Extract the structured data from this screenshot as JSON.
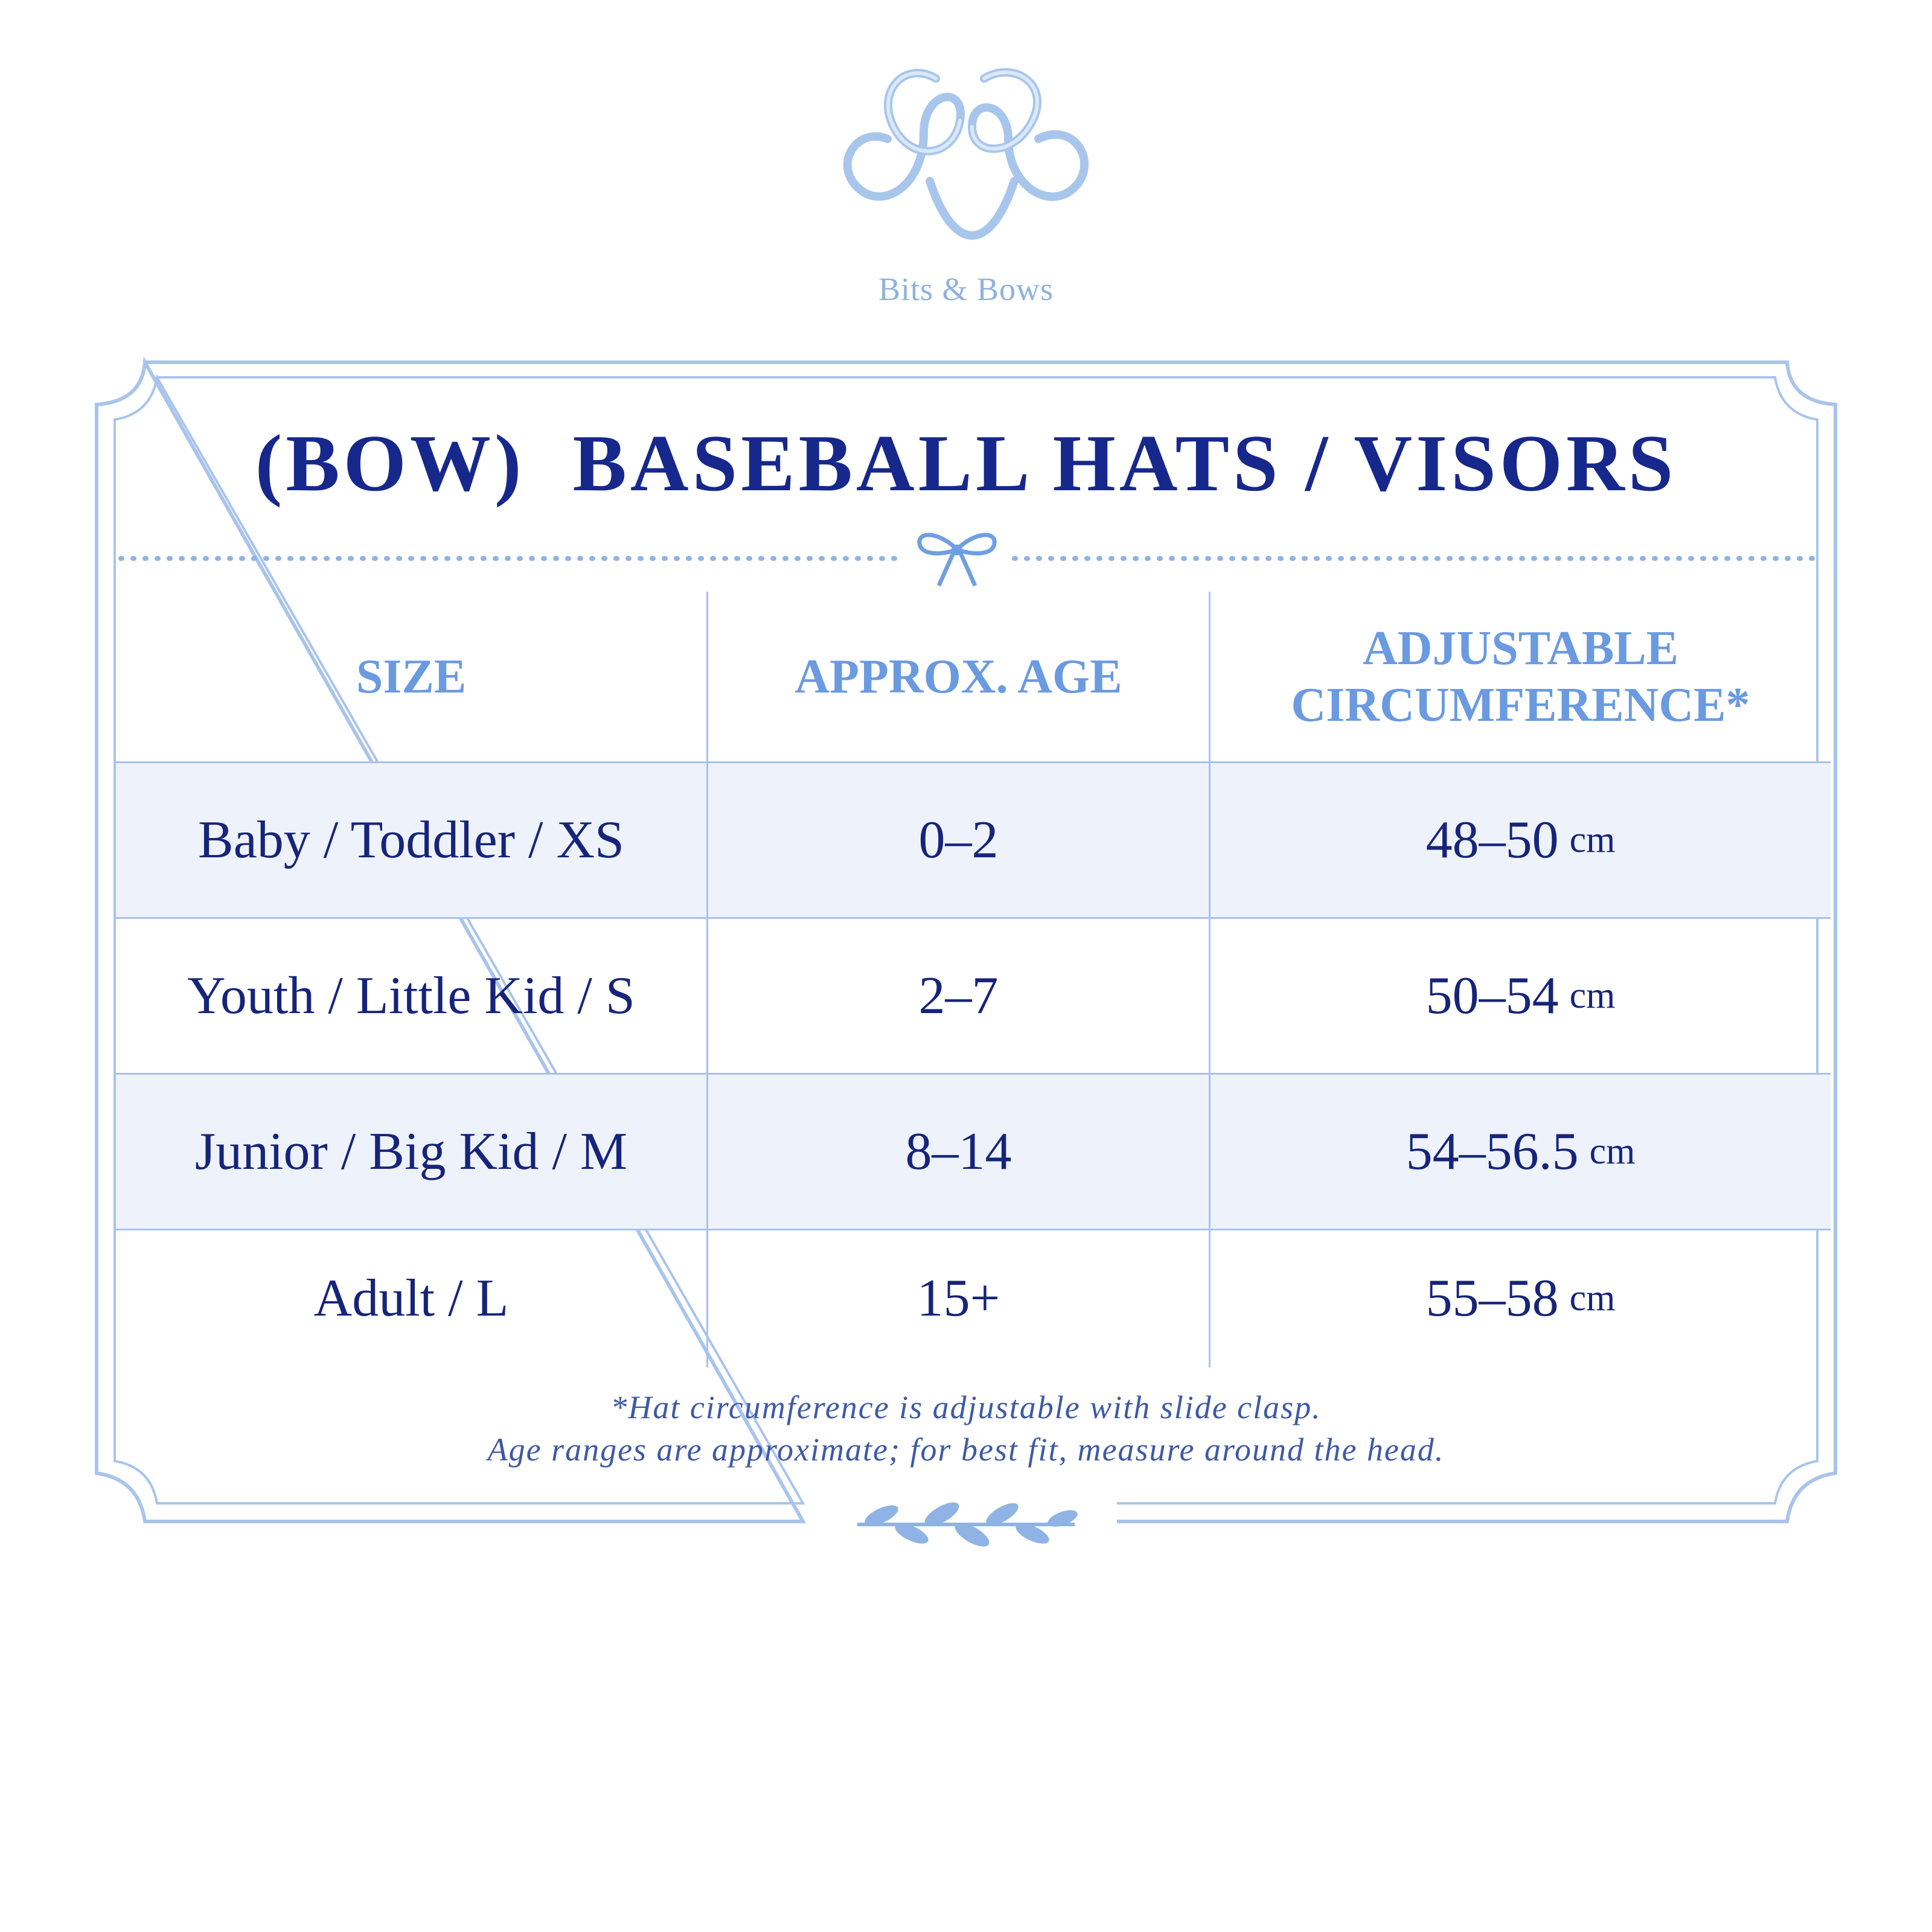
{
  "brand": {
    "name": "Bits & Bows"
  },
  "title": "(BOW)  BASEBALL HATS / VISORS",
  "table": {
    "headers": {
      "size": "SIZE",
      "age": "APPROX. AGE",
      "circ_line1": "ADJUSTABLE",
      "circ_line2": "CIRCUMFERENCE*"
    },
    "rows": [
      {
        "size": "Baby / Toddler / XS",
        "age": "0–2",
        "circ": "48–50",
        "unit": "cm"
      },
      {
        "size": "Youth / Little Kid / S",
        "age": "2–7",
        "circ": "50–54",
        "unit": "cm"
      },
      {
        "size": "Junior / Big Kid / M",
        "age": "8–14",
        "circ": "54–56.5",
        "unit": "cm"
      },
      {
        "size": "Adult / L",
        "age": "15+",
        "circ": "55–58",
        "unit": "cm"
      }
    ]
  },
  "footnote": {
    "line1": "*Hat circumference is adjustable with slide clasp.",
    "line2": "Age ranges are approximate; for best fit, measure around the head."
  },
  "colors": {
    "navy": "#17288c",
    "light_blue": "#6a9ae0",
    "row_tint": "#eef2fb",
    "border": "#a9c2ea"
  },
  "icons": [
    "monogram-logo-icon",
    "bow-icon",
    "leaf-sprig-icon"
  ]
}
